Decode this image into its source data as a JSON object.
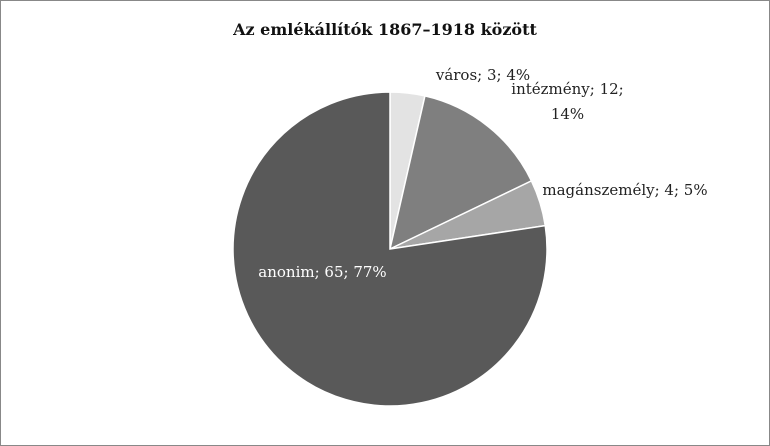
{
  "chart_data": {
    "type": "pie",
    "title": "Az emlékállítók 1867–1918 között",
    "values": [
      3,
      12,
      4,
      65
    ],
    "value_labels": [
      "város; 3; 4%",
      "intézmény; 12; 14%",
      "magánszemély; 4; 5%",
      "anonim; 65; 77%"
    ],
    "colors": [
      "#e3e3e3",
      "#7f7f7f",
      "#a6a6a6",
      "#595959"
    ]
  }
}
